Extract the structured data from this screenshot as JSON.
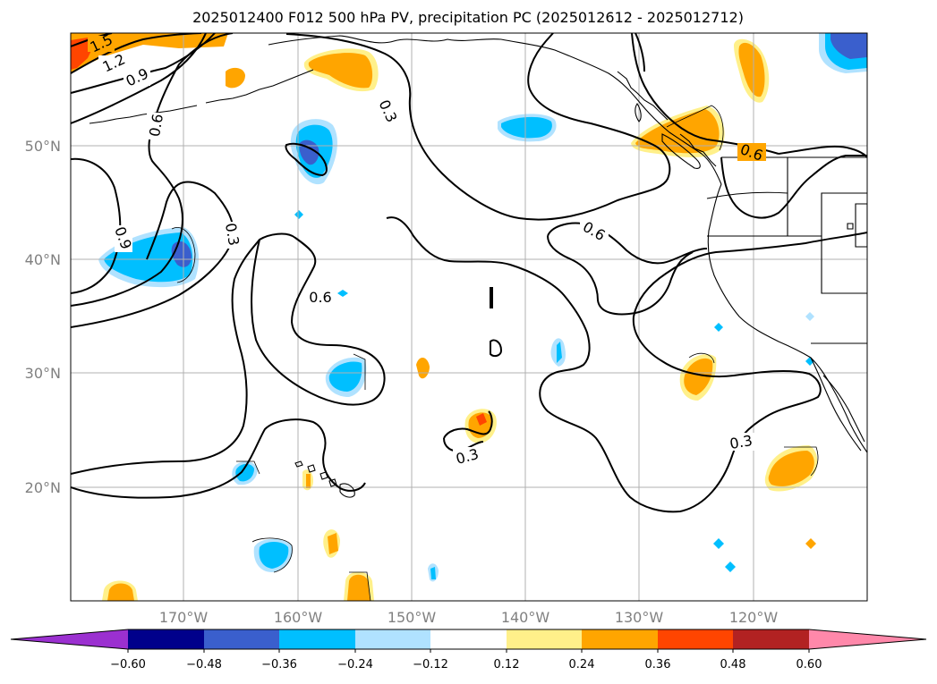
{
  "title": "2025012400 F012 500 hPa PV, precipitation PC (2025012612 - 2025012712)",
  "map": {
    "lat_labels": [
      "50°N",
      "40°N",
      "30°N",
      "20°N"
    ],
    "lon_labels": [
      "170°W",
      "160°W",
      "150°W",
      "140°W",
      "130°W",
      "120°W"
    ],
    "pv_contour_labels": [
      "1.5",
      "1.2",
      "0.9",
      "0.6",
      "0.9",
      "0.3",
      "0.3",
      "0.6",
      "0.6",
      "0.3",
      "0.3",
      "0.6"
    ]
  },
  "colorbar": {
    "tick_labels": [
      "−0.60",
      "−0.48",
      "−0.36",
      "−0.24",
      "−0.12",
      "0.12",
      "0.24",
      "0.36",
      "0.48",
      "0.60"
    ],
    "colors": [
      "#9b30d0",
      "#00008b",
      "#3a5fcd",
      "#00bfff",
      "#b0e2ff",
      "#ffffff",
      "#fff08a",
      "#ffa500",
      "#ff4500",
      "#b22222",
      "#ff88aa"
    ]
  },
  "colors": {
    "grid": "#b0b0b0",
    "coast": "#000000",
    "contour": "#000000"
  }
}
